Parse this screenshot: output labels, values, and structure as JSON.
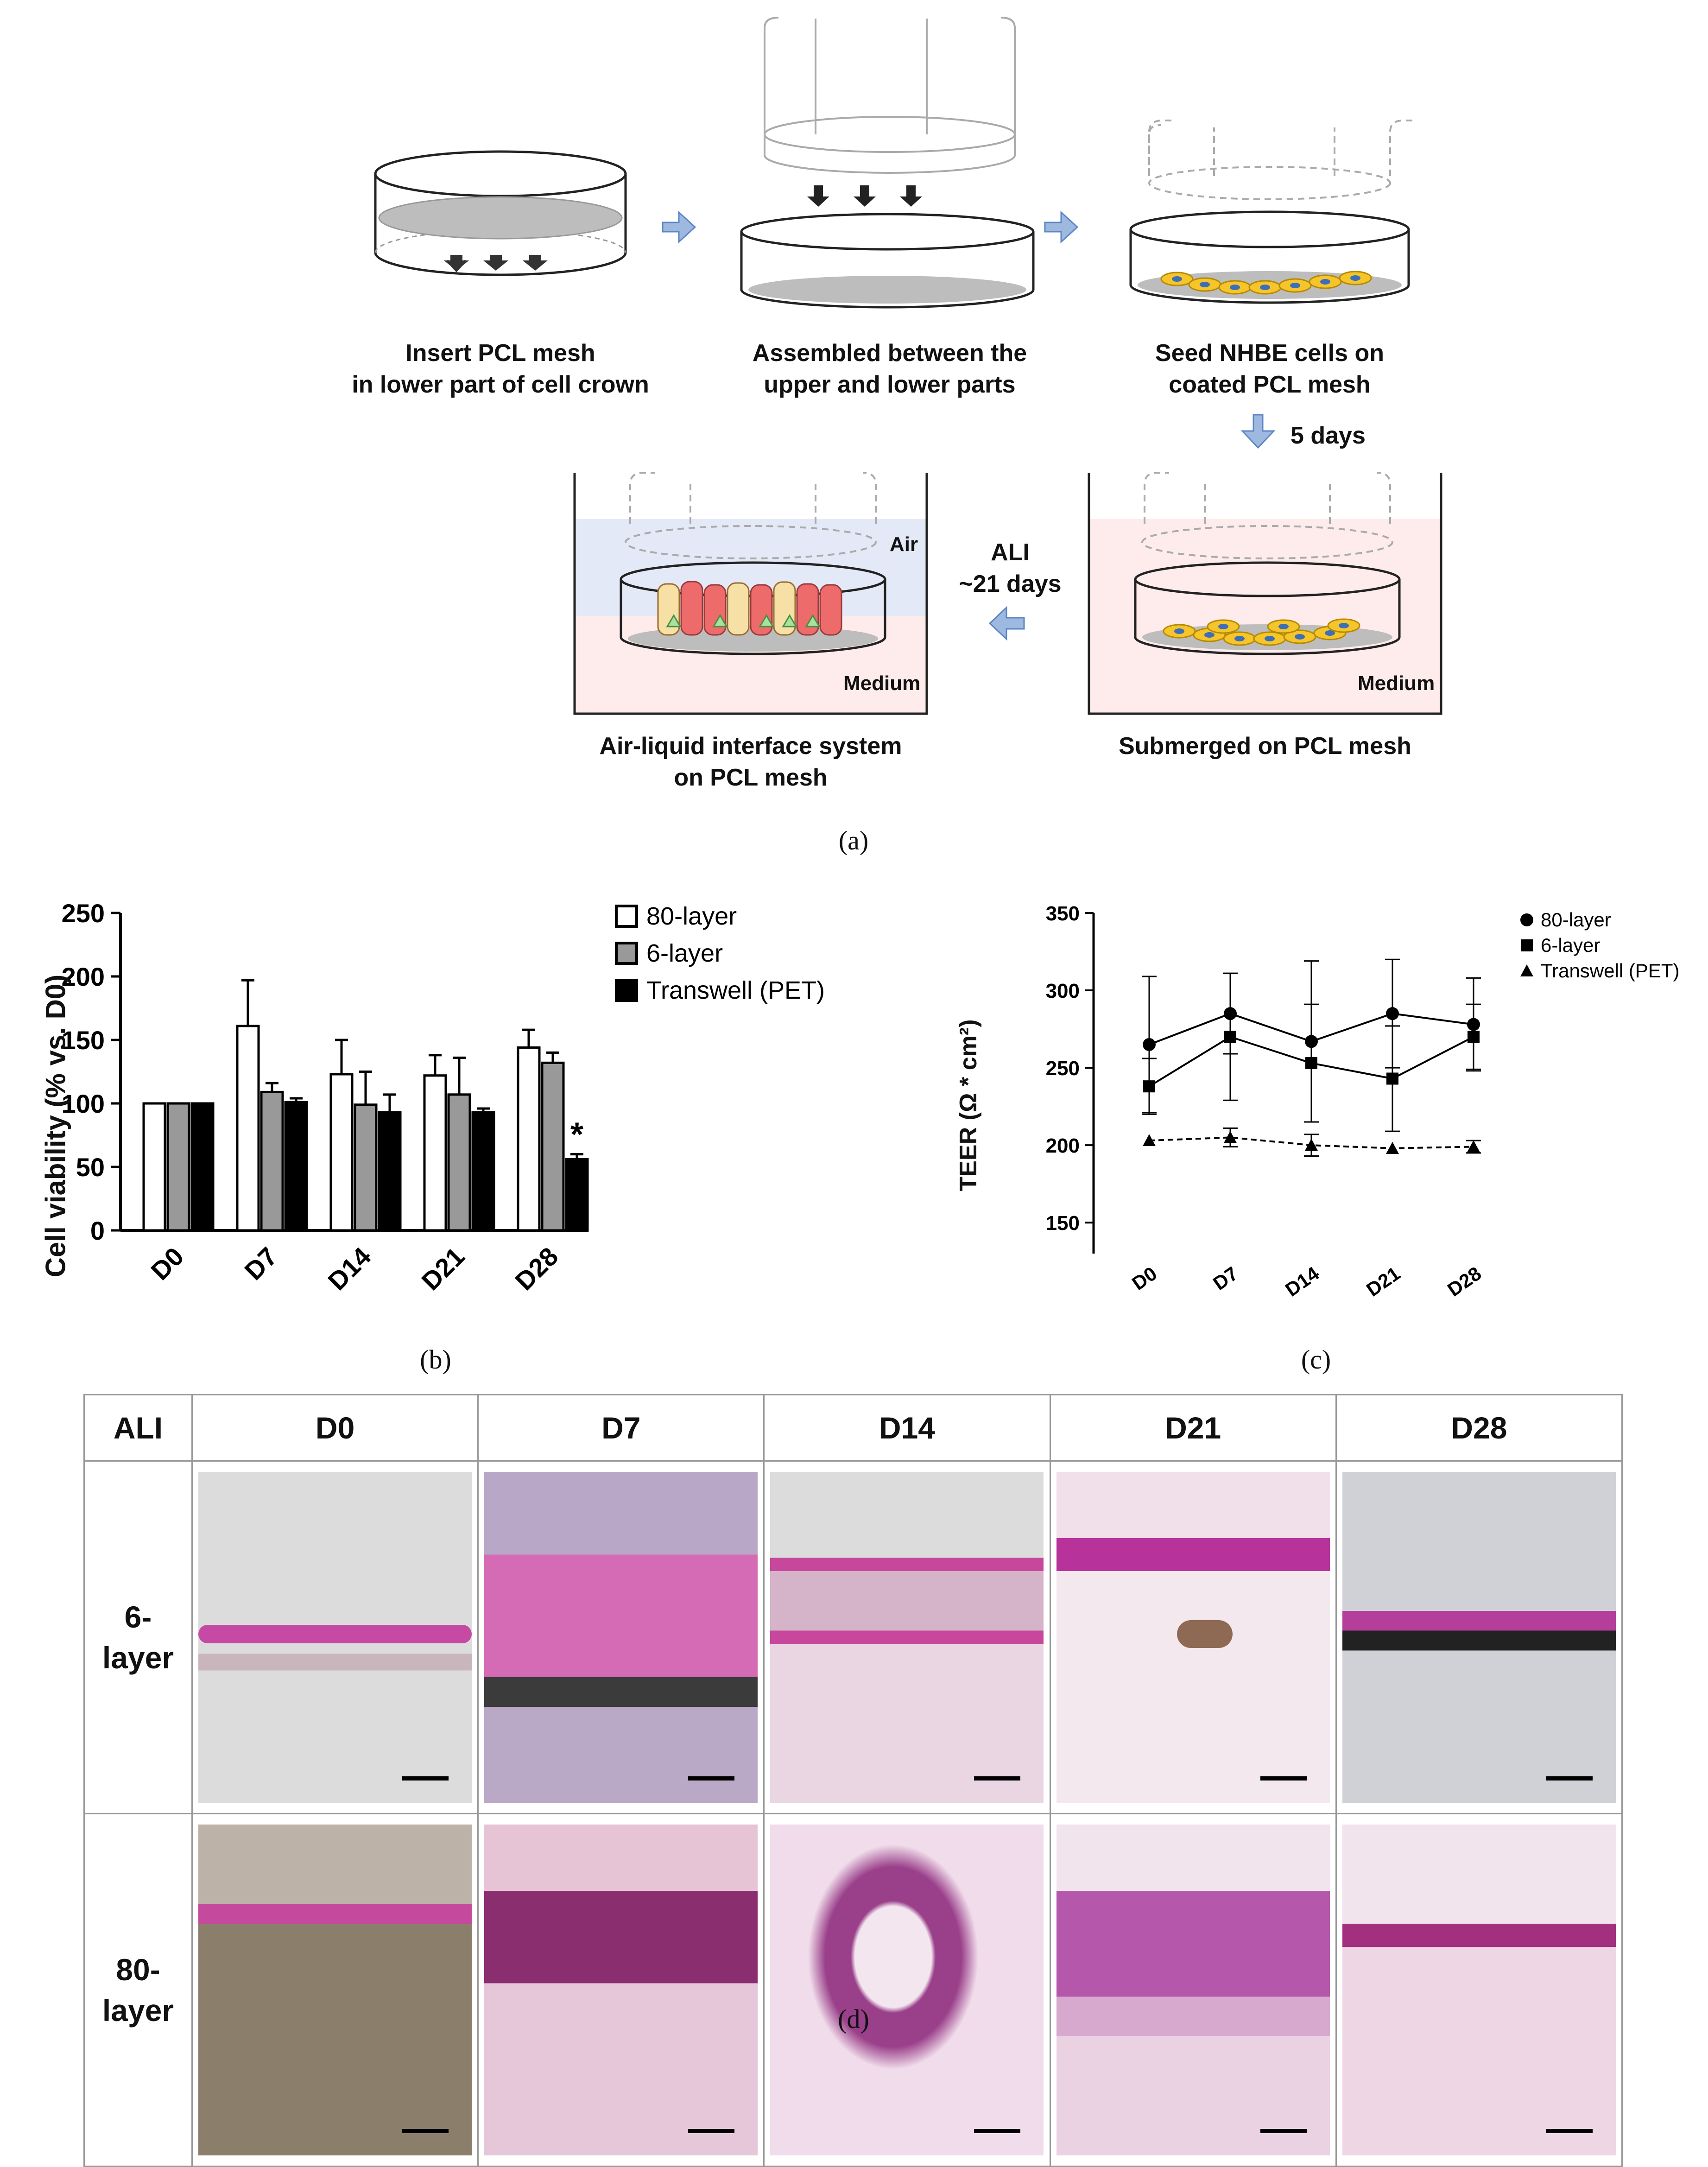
{
  "panel_a": {
    "steps": [
      {
        "line1": "Insert PCL mesh",
        "line2": "in lower part of cell crown"
      },
      {
        "line1": "Assembled between the",
        "line2": "upper and lower parts"
      },
      {
        "line1": "Seed NHBE cells on",
        "line2": "coated PCL mesh"
      },
      {
        "line1": "Submerged on PCL mesh",
        "line2": ""
      },
      {
        "line1": "Air-liquid interface system",
        "line2": "on PCL mesh"
      }
    ],
    "arrow_5days": "5 days",
    "ali_label_1": "ALI",
    "ali_label_2": "~21 days",
    "air": "Air",
    "medium_1": "Medium",
    "medium_2": "Medium",
    "caption": "(a)"
  },
  "panel_b": {
    "caption": "(b)",
    "significance_mark": "*",
    "colors": {
      "80-layer": "#ffffff",
      "6-layer": "#999999",
      "Transwell (PET)": "#000000"
    },
    "chart_data": {
      "type": "bar",
      "categories": [
        "D0",
        "D7",
        "D14",
        "D21",
        "D28"
      ],
      "ylabel": "Cell viability (% vs. D0)",
      "ylim": [
        0,
        250
      ],
      "yticks": [
        0,
        50,
        100,
        150,
        200,
        250
      ],
      "legend_position": "top-right",
      "series": [
        {
          "name": "80-layer",
          "values": [
            100,
            161,
            123,
            122,
            144
          ],
          "errors": [
            0,
            36,
            27,
            16,
            14
          ]
        },
        {
          "name": "6-layer",
          "values": [
            100,
            109,
            99,
            107,
            132
          ],
          "errors": [
            0,
            7,
            26,
            29,
            8
          ]
        },
        {
          "name": "Transwell (PET)",
          "values": [
            100,
            101,
            93,
            93,
            56
          ],
          "errors": [
            0,
            3,
            14,
            3,
            4
          ]
        }
      ]
    }
  },
  "panel_c": {
    "caption": "(c)",
    "chart_data": {
      "type": "line",
      "categories": [
        "D0",
        "D7",
        "D14",
        "D21",
        "D28"
      ],
      "ylabel": "TEER (Ω * cm²)",
      "ylim": [
        130,
        350
      ],
      "yticks": [
        150,
        200,
        250,
        300,
        350
      ],
      "legend_position": "top-right",
      "series": [
        {
          "name": "80-layer",
          "marker": "circle",
          "line": "solid",
          "values": [
            265,
            285,
            267,
            285,
            278
          ],
          "errors": [
            44,
            26,
            52,
            35,
            30
          ]
        },
        {
          "name": "6-layer",
          "marker": "square",
          "line": "solid",
          "values": [
            238,
            270,
            253,
            243,
            270
          ],
          "errors": [
            18,
            41,
            38,
            34,
            21
          ]
        },
        {
          "name": "Transwell (PET)",
          "marker": "triangle",
          "line": "dashed",
          "values": [
            203,
            205,
            200,
            198,
            199
          ],
          "errors": [
            0,
            6,
            7,
            0,
            4
          ]
        }
      ]
    }
  },
  "panel_d": {
    "caption": "(d)",
    "corner": "ALI",
    "columns": [
      "D0",
      "D7",
      "D14",
      "D21",
      "D28"
    ],
    "rows": [
      {
        "line1": "6-",
        "line2": "layer"
      },
      {
        "line1": "80-",
        "line2": "layer"
      }
    ]
  }
}
